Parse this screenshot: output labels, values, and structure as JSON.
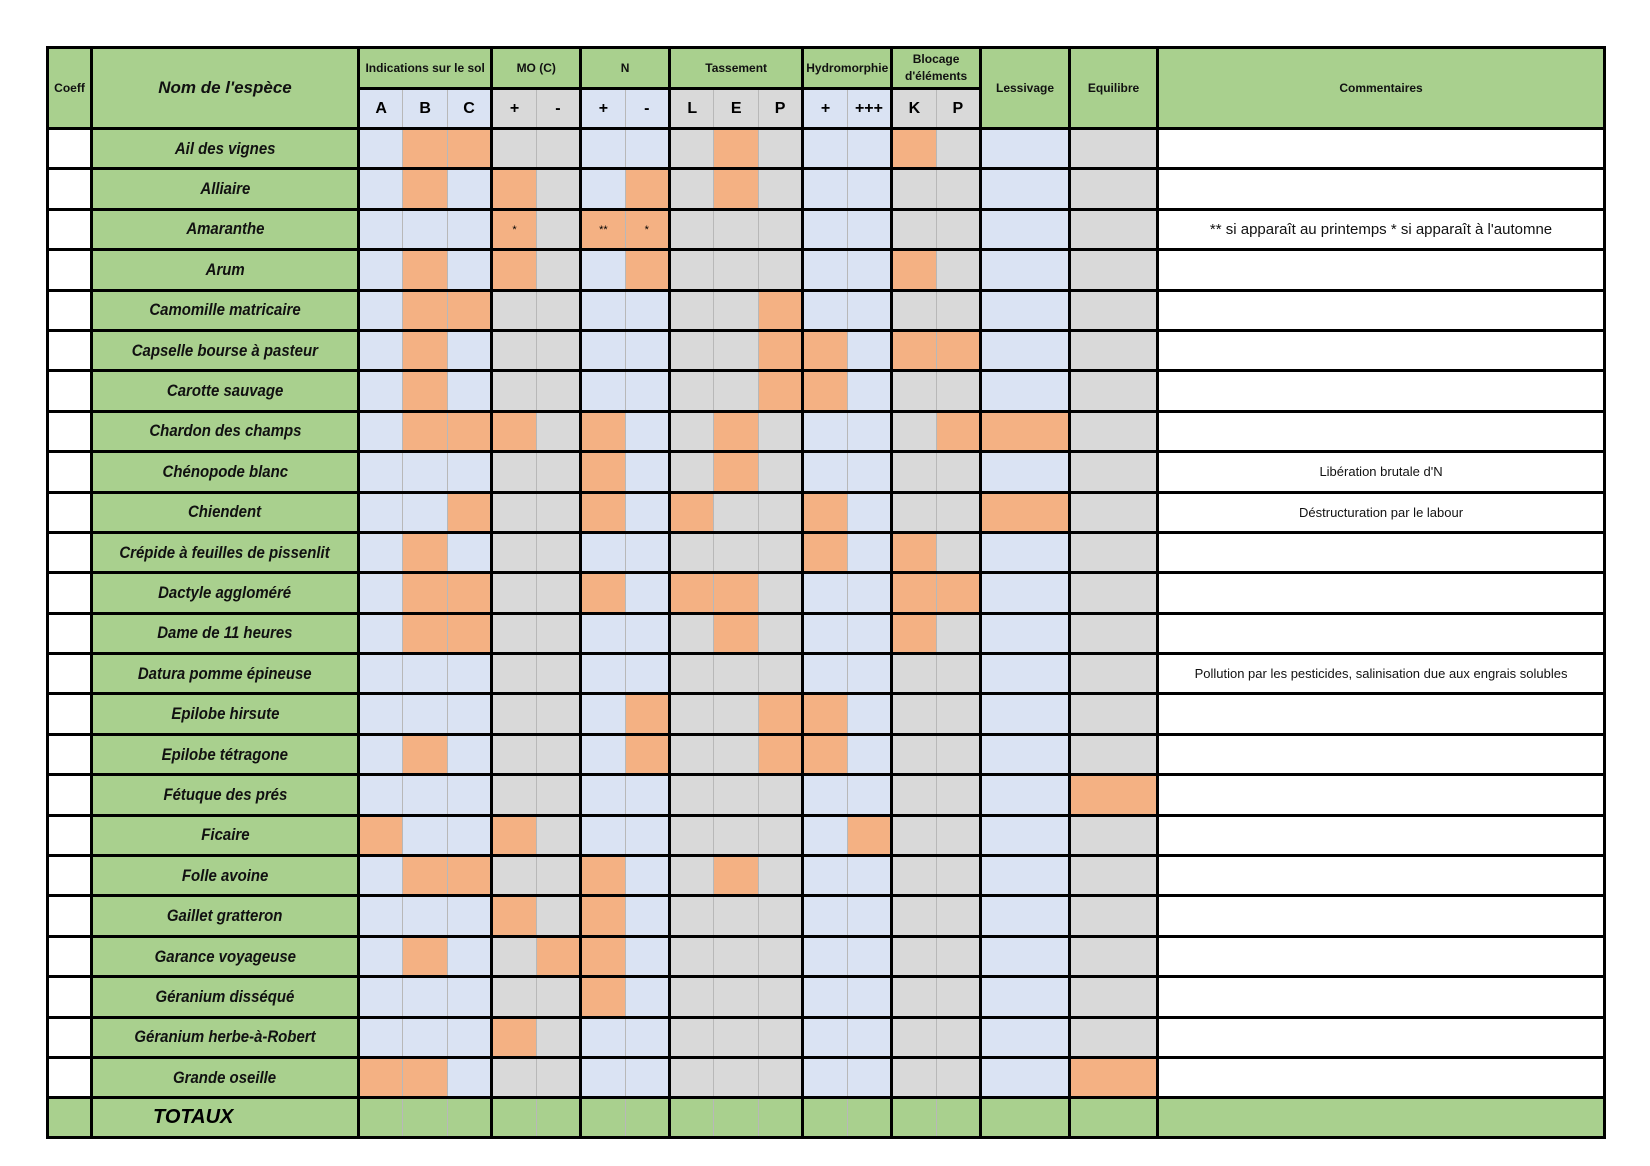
{
  "colors": {
    "header": "#a9d08e",
    "blue": "#dae3f3",
    "grey": "#d9d9d9",
    "marked": "#f4b183",
    "white": "#ffffff"
  },
  "header": {
    "coeff": "Coeff",
    "name": "Nom de l'espèce",
    "groups": [
      {
        "label": "Indications sur le sol",
        "subs": [
          "A",
          "B",
          "C"
        ],
        "shade": "blue"
      },
      {
        "label": "MO (C)",
        "subs": [
          "+",
          "-"
        ],
        "shade": "grey"
      },
      {
        "label": "N",
        "subs": [
          "+",
          "-"
        ],
        "shade": "blue"
      },
      {
        "label": "Tassement",
        "subs": [
          "L",
          "E",
          "P"
        ],
        "shade": "grey"
      },
      {
        "label": "Hydromorphie",
        "subs": [
          "+",
          "+++"
        ],
        "shade": "blue"
      },
      {
        "label": "Blocage d'éléments",
        "subs": [
          "K",
          "P"
        ],
        "shade": "grey"
      }
    ],
    "lessivage": "Lessivage",
    "equilibre": "Equilibre",
    "commentaires": "Commentaires"
  },
  "rows": [
    {
      "name": "Ail des vignes",
      "marked": [
        1,
        2,
        8,
        12
      ],
      "comment": ""
    },
    {
      "name": "Alliaire",
      "marked": [
        1,
        3,
        6,
        8
      ],
      "comment": ""
    },
    {
      "name": "Amaranthe",
      "marked": [
        3,
        5,
        6
      ],
      "notes": {
        "3": "*",
        "5": "**",
        "6": "*"
      },
      "comment": "** si apparaît au printemps\n* si apparaît à l'automne"
    },
    {
      "name": "Arum",
      "marked": [
        1,
        3,
        6,
        12
      ],
      "comment": ""
    },
    {
      "name": "Camomille matricaire",
      "marked": [
        1,
        2,
        9
      ],
      "comment": ""
    },
    {
      "name": "Capselle bourse à pasteur",
      "marked": [
        1,
        9,
        10,
        12,
        13
      ],
      "comment": ""
    },
    {
      "name": "Carotte sauvage",
      "marked": [
        1,
        9,
        10
      ],
      "comment": ""
    },
    {
      "name": "Chardon des champs",
      "marked": [
        1,
        2,
        3,
        5,
        8,
        13,
        14
      ],
      "comment": ""
    },
    {
      "name": "Chénopode blanc",
      "marked": [
        5,
        8
      ],
      "comment": "Libération brutale d'N"
    },
    {
      "name": "Chiendent",
      "marked": [
        2,
        5,
        7,
        10,
        14
      ],
      "comment": "Déstructuration par le labour"
    },
    {
      "name": "Crépide à feuilles de pissenlit",
      "marked": [
        1,
        10,
        12
      ],
      "comment": ""
    },
    {
      "name": "Dactyle aggloméré",
      "marked": [
        1,
        2,
        5,
        7,
        8,
        12,
        13
      ],
      "comment": ""
    },
    {
      "name": "Dame de 11 heures",
      "marked": [
        1,
        2,
        8,
        12
      ],
      "comment": ""
    },
    {
      "name": "Datura pomme épineuse",
      "marked": [],
      "comment": "Pollution par les pesticides, salinisation due aux engrais solubles"
    },
    {
      "name": "Epilobe hirsute",
      "marked": [
        6,
        9,
        10
      ],
      "comment": ""
    },
    {
      "name": "Epilobe tétragone",
      "marked": [
        1,
        6,
        9,
        10
      ],
      "comment": ""
    },
    {
      "name": "Fétuque des prés",
      "marked": [
        15
      ],
      "comment": ""
    },
    {
      "name": "Ficaire",
      "marked": [
        0,
        3,
        11
      ],
      "comment": ""
    },
    {
      "name": "Folle avoine",
      "marked": [
        1,
        2,
        5,
        8
      ],
      "comment": ""
    },
    {
      "name": "Gaillet gratteron",
      "marked": [
        3,
        5
      ],
      "comment": ""
    },
    {
      "name": "Garance voyageuse",
      "marked": [
        1,
        4,
        5
      ],
      "comment": ""
    },
    {
      "name": "Géranium disséqué",
      "marked": [
        5
      ],
      "comment": ""
    },
    {
      "name": "Géranium herbe-à-Robert",
      "marked": [
        3
      ],
      "comment": ""
    },
    {
      "name": "Grande oseille",
      "marked": [
        0,
        1,
        15
      ],
      "comment": ""
    }
  ],
  "totals_label": "TOTAUX"
}
